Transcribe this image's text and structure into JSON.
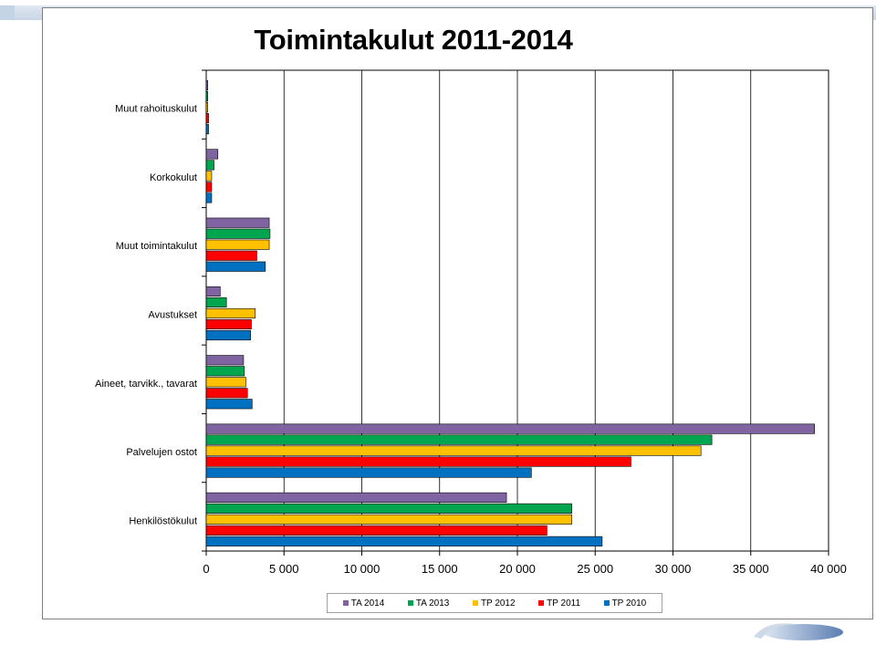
{
  "chart_data": {
    "type": "bar",
    "orientation": "horizontal",
    "title": "Toimintakulut 2011-2014",
    "xlim": [
      0,
      40000
    ],
    "x_ticks": [
      "0",
      "5 000",
      "10 000",
      "15 000",
      "20 000",
      "25 000",
      "30 000",
      "35 000",
      "40 000"
    ],
    "x_tick_values": [
      0,
      5000,
      10000,
      15000,
      20000,
      25000,
      30000,
      35000,
      40000
    ],
    "categories": [
      "Muut rahoituskulut",
      "Korkokulut",
      "Muut toimintakulut",
      "Avustukset",
      "Aineet, tarvikk., tavarat",
      "Palvelujen ostot",
      "Henkilöstökulut"
    ],
    "series": [
      {
        "name": "TA 2014",
        "color": "#8064a2",
        "values": [
          100,
          750,
          4050,
          900,
          2400,
          39100,
          19300
        ]
      },
      {
        "name": "TA 2013",
        "color": "#00a550",
        "values": [
          100,
          500,
          4100,
          1300,
          2450,
          32500,
          23500
        ]
      },
      {
        "name": "TP 2012",
        "color": "#ffc000",
        "values": [
          100,
          350,
          4050,
          3150,
          2550,
          31800,
          23500
        ]
      },
      {
        "name": "TP 2011",
        "color": "#ff0000",
        "values": [
          150,
          350,
          3250,
          2900,
          2650,
          27300,
          21900
        ]
      },
      {
        "name": "TP 2010",
        "color": "#0070c0",
        "values": [
          150,
          350,
          3800,
          2850,
          2950,
          20900,
          25450
        ]
      }
    ],
    "legend_position": "bottom",
    "legend_order": [
      "TA 2014",
      "TA 2013",
      "TP 2012",
      "TP 2011",
      "TP 2010"
    ],
    "grid": "vertical"
  }
}
